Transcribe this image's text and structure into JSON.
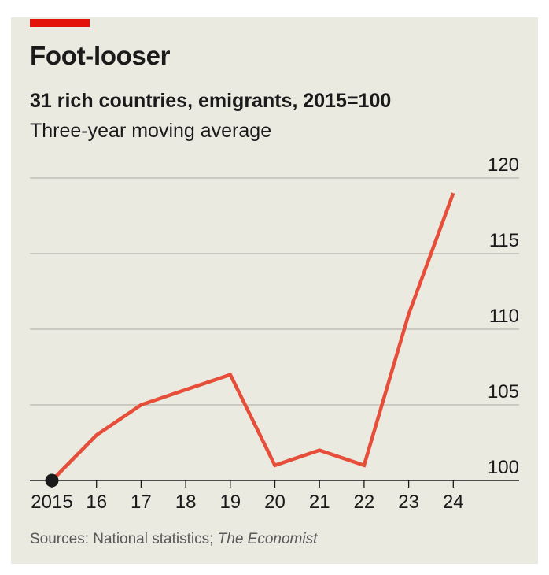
{
  "header": {
    "title": "Foot-looser",
    "subtitle": "31 rich countries, emigrants, 2015=100",
    "note": "Three-year moving average"
  },
  "source": {
    "prefix": "Sources: National statistics; ",
    "publication": "The Economist"
  },
  "colors": {
    "accent": "#e3120b",
    "line": "#e64e3a",
    "marker": "#1a1a1a",
    "grid": "#b8b8b0",
    "axis": "#1a1a1a",
    "background": "#ebeae1"
  },
  "chart_data": {
    "type": "line",
    "title": "Foot-looser",
    "subtitle": "31 rich countries, emigrants, 2015=100",
    "note": "Three-year moving average",
    "categories": [
      "2015",
      "16",
      "17",
      "18",
      "19",
      "20",
      "21",
      "22",
      "23",
      "24"
    ],
    "series": [
      {
        "values": [
          100,
          103,
          105,
          106,
          107,
          101,
          102,
          101,
          111,
          119
        ]
      }
    ],
    "y_ticks": [
      100,
      105,
      110,
      115,
      120
    ],
    "ylim": [
      100,
      120
    ],
    "y_axis_side": "right",
    "grid": true,
    "start_marker": true
  }
}
